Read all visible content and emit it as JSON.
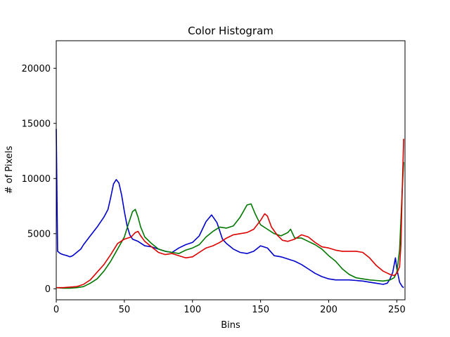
{
  "chart_data": {
    "type": "line",
    "title": "Color Histogram",
    "xlabel": "Bins",
    "ylabel": "# of Pixels",
    "xlim": [
      0,
      256
    ],
    "ylim": [
      -1000,
      22500
    ],
    "xticks": [
      0,
      50,
      100,
      150,
      200,
      250
    ],
    "yticks": [
      0,
      5000,
      10000,
      15000,
      20000
    ],
    "xtick_labels": [
      "0",
      "50",
      "100",
      "150",
      "200",
      "250"
    ],
    "ytick_labels": [
      "0",
      "5000",
      "10000",
      "15000",
      "20000"
    ],
    "grid": false,
    "legend": null,
    "series": [
      {
        "color": "#0000cc",
        "points": [
          [
            0,
            14500
          ],
          [
            1,
            3400
          ],
          [
            3,
            3200
          ],
          [
            5,
            3100
          ],
          [
            8,
            3000
          ],
          [
            10,
            2900
          ],
          [
            12,
            3000
          ],
          [
            15,
            3300
          ],
          [
            18,
            3600
          ],
          [
            20,
            4000
          ],
          [
            25,
            4800
          ],
          [
            30,
            5600
          ],
          [
            35,
            6500
          ],
          [
            38,
            7200
          ],
          [
            40,
            8300
          ],
          [
            42,
            9500
          ],
          [
            44,
            9900
          ],
          [
            46,
            9600
          ],
          [
            48,
            8500
          ],
          [
            50,
            7000
          ],
          [
            52,
            5700
          ],
          [
            54,
            4900
          ],
          [
            56,
            4500
          ],
          [
            60,
            4300
          ],
          [
            65,
            3900
          ],
          [
            70,
            3800
          ],
          [
            75,
            3600
          ],
          [
            80,
            3400
          ],
          [
            85,
            3300
          ],
          [
            90,
            3700
          ],
          [
            95,
            4000
          ],
          [
            100,
            4200
          ],
          [
            105,
            4800
          ],
          [
            110,
            6100
          ],
          [
            114,
            6700
          ],
          [
            118,
            6000
          ],
          [
            122,
            4500
          ],
          [
            125,
            4100
          ],
          [
            130,
            3600
          ],
          [
            135,
            3300
          ],
          [
            140,
            3200
          ],
          [
            145,
            3400
          ],
          [
            150,
            3900
          ],
          [
            155,
            3700
          ],
          [
            160,
            3000
          ],
          [
            165,
            2900
          ],
          [
            170,
            2700
          ],
          [
            175,
            2500
          ],
          [
            180,
            2200
          ],
          [
            185,
            1800
          ],
          [
            190,
            1400
          ],
          [
            195,
            1100
          ],
          [
            200,
            900
          ],
          [
            205,
            800
          ],
          [
            210,
            800
          ],
          [
            215,
            800
          ],
          [
            220,
            750
          ],
          [
            225,
            700
          ],
          [
            230,
            600
          ],
          [
            235,
            500
          ],
          [
            240,
            400
          ],
          [
            243,
            500
          ],
          [
            245,
            900
          ],
          [
            247,
            1500
          ],
          [
            249,
            2800
          ],
          [
            250,
            1800
          ],
          [
            252,
            600
          ],
          [
            254,
            200
          ],
          [
            255,
            100
          ]
        ]
      },
      {
        "color": "#007700",
        "points": [
          [
            0,
            100
          ],
          [
            5,
            50
          ],
          [
            10,
            50
          ],
          [
            15,
            100
          ],
          [
            20,
            200
          ],
          [
            25,
            500
          ],
          [
            30,
            900
          ],
          [
            35,
            1600
          ],
          [
            40,
            2500
          ],
          [
            45,
            3600
          ],
          [
            50,
            4700
          ],
          [
            53,
            5900
          ],
          [
            56,
            7000
          ],
          [
            58,
            7200
          ],
          [
            60,
            6500
          ],
          [
            62,
            5600
          ],
          [
            65,
            4700
          ],
          [
            70,
            4100
          ],
          [
            75,
            3600
          ],
          [
            80,
            3400
          ],
          [
            85,
            3300
          ],
          [
            90,
            3200
          ],
          [
            95,
            3500
          ],
          [
            100,
            3700
          ],
          [
            105,
            4000
          ],
          [
            110,
            4700
          ],
          [
            115,
            5200
          ],
          [
            120,
            5600
          ],
          [
            125,
            5500
          ],
          [
            130,
            5700
          ],
          [
            135,
            6500
          ],
          [
            140,
            7600
          ],
          [
            143,
            7700
          ],
          [
            146,
            6800
          ],
          [
            150,
            5800
          ],
          [
            155,
            5400
          ],
          [
            160,
            5000
          ],
          [
            165,
            4800
          ],
          [
            170,
            5100
          ],
          [
            172,
            5400
          ],
          [
            175,
            4600
          ],
          [
            180,
            4600
          ],
          [
            185,
            4300
          ],
          [
            190,
            4000
          ],
          [
            195,
            3600
          ],
          [
            200,
            3000
          ],
          [
            205,
            2500
          ],
          [
            210,
            1800
          ],
          [
            215,
            1300
          ],
          [
            220,
            1000
          ],
          [
            225,
            900
          ],
          [
            230,
            800
          ],
          [
            235,
            750
          ],
          [
            240,
            700
          ],
          [
            245,
            800
          ],
          [
            248,
            1000
          ],
          [
            250,
            1500
          ],
          [
            252,
            3500
          ],
          [
            254,
            9000
          ],
          [
            255,
            11500
          ]
        ]
      },
      {
        "color": "#dd0000",
        "points": [
          [
            0,
            100
          ],
          [
            5,
            100
          ],
          [
            10,
            150
          ],
          [
            15,
            200
          ],
          [
            20,
            400
          ],
          [
            25,
            800
          ],
          [
            30,
            1500
          ],
          [
            35,
            2200
          ],
          [
            40,
            3100
          ],
          [
            45,
            4100
          ],
          [
            50,
            4500
          ],
          [
            55,
            4700
          ],
          [
            58,
            5100
          ],
          [
            60,
            5200
          ],
          [
            62,
            4800
          ],
          [
            65,
            4300
          ],
          [
            70,
            3800
          ],
          [
            75,
            3300
          ],
          [
            80,
            3100
          ],
          [
            85,
            3200
          ],
          [
            90,
            3000
          ],
          [
            95,
            2800
          ],
          [
            100,
            2900
          ],
          [
            105,
            3300
          ],
          [
            110,
            3700
          ],
          [
            115,
            3900
          ],
          [
            120,
            4200
          ],
          [
            125,
            4600
          ],
          [
            130,
            4900
          ],
          [
            135,
            5000
          ],
          [
            140,
            5100
          ],
          [
            145,
            5400
          ],
          [
            150,
            6200
          ],
          [
            153,
            6800
          ],
          [
            155,
            6600
          ],
          [
            158,
            5600
          ],
          [
            162,
            4900
          ],
          [
            166,
            4400
          ],
          [
            170,
            4300
          ],
          [
            175,
            4500
          ],
          [
            180,
            4900
          ],
          [
            185,
            4700
          ],
          [
            190,
            4200
          ],
          [
            195,
            3800
          ],
          [
            200,
            3700
          ],
          [
            205,
            3500
          ],
          [
            210,
            3400
          ],
          [
            215,
            3400
          ],
          [
            220,
            3400
          ],
          [
            225,
            3300
          ],
          [
            230,
            2800
          ],
          [
            235,
            2100
          ],
          [
            240,
            1600
          ],
          [
            245,
            1300
          ],
          [
            248,
            1200
          ],
          [
            250,
            1400
          ],
          [
            252,
            2000
          ],
          [
            253,
            4000
          ],
          [
            254,
            9000
          ],
          [
            255,
            13600
          ]
        ]
      }
    ]
  }
}
